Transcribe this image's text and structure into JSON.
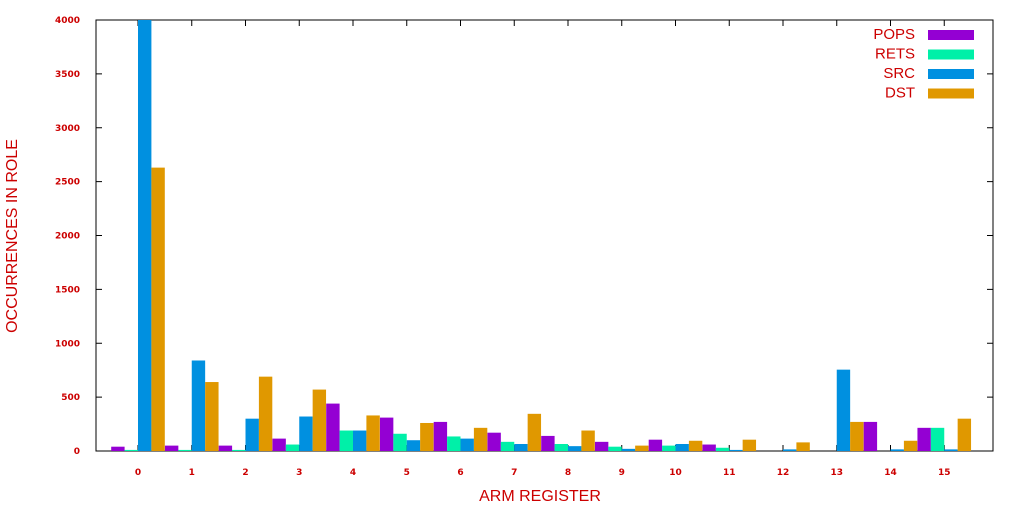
{
  "chart_data": {
    "type": "bar",
    "xlabel": "ARM REGISTER",
    "ylabel": "OCCURRENCES IN ROLE",
    "ylim": [
      0,
      4000
    ],
    "yticks": [
      "0",
      "500",
      "1000",
      "1500",
      "2000",
      "2500",
      "3000",
      "3500",
      "4000"
    ],
    "categories": [
      "0",
      "1",
      "2",
      "3",
      "4",
      "5",
      "6",
      "7",
      "8",
      "9",
      "10",
      "11",
      "12",
      "13",
      "14",
      "15"
    ],
    "legend_position": "top-right",
    "grid": false,
    "series": [
      {
        "name": "POPS",
        "color": "#9400d3",
        "values": [
          40,
          50,
          50,
          115,
          440,
          310,
          270,
          170,
          140,
          85,
          105,
          60,
          0,
          0,
          270,
          215
        ]
      },
      {
        "name": "RETS",
        "color": "#00f0a8",
        "values": [
          10,
          10,
          10,
          60,
          190,
          160,
          135,
          85,
          65,
          40,
          50,
          30,
          0,
          0,
          0,
          215
        ]
      },
      {
        "name": "SRC",
        "color": "#0090e0",
        "values": [
          4000,
          840,
          300,
          320,
          190,
          100,
          115,
          65,
          45,
          20,
          65,
          10,
          15,
          755,
          15,
          15
        ]
      },
      {
        "name": "DST",
        "color": "#e09800",
        "values": [
          2630,
          640,
          690,
          570,
          330,
          260,
          215,
          345,
          190,
          50,
          95,
          105,
          80,
          270,
          95,
          300
        ]
      }
    ],
    "text_color": "#cc0000"
  }
}
